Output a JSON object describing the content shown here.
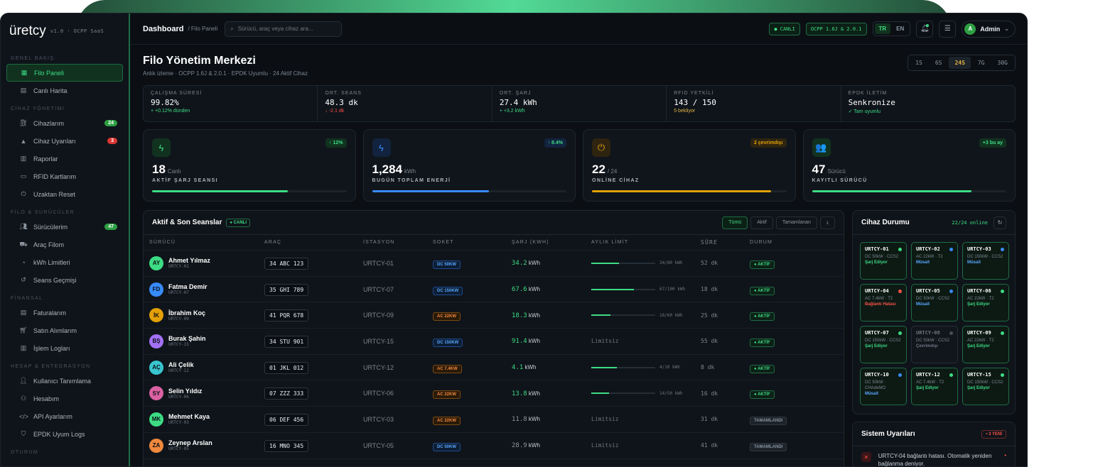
{
  "brand": {
    "name": "üretcy",
    "version": "v1.0 · OCPP SaaS"
  },
  "sidebar": {
    "groups": [
      {
        "title": "GENEL BAKIŞ",
        "items": [
          {
            "label": "Filo Paneli",
            "icon": "dashboard-icon",
            "active": true
          },
          {
            "label": "Canlı Harita",
            "icon": "map-icon"
          }
        ]
      },
      {
        "title": "CİHAZ YÖNETİMİ",
        "items": [
          {
            "label": "Cihazlarım",
            "icon": "charger-icon",
            "badge": "24",
            "badge_color": "#2ea043"
          },
          {
            "label": "Cihaz Uyarıları",
            "icon": "warning-icon",
            "badge": "3",
            "badge_color": "#da3633"
          },
          {
            "label": "Raporlar",
            "icon": "report-icon"
          },
          {
            "label": "RFID Kartlarım",
            "icon": "card-icon"
          },
          {
            "label": "Uzaktan Reset",
            "icon": "power-icon"
          }
        ]
      },
      {
        "title": "FİLO & SÜRÜCÜLER",
        "items": [
          {
            "label": "Sürücülerim",
            "icon": "users-icon",
            "badge": "47",
            "badge_color": "#2ea043"
          },
          {
            "label": "Araç Filom",
            "icon": "car-icon"
          },
          {
            "label": "kWh Limitleri",
            "icon": "gauge-icon"
          },
          {
            "label": "Seans Geçmişi",
            "icon": "history-icon"
          }
        ]
      },
      {
        "title": "FİNANSAL",
        "items": [
          {
            "label": "Faturalarım",
            "icon": "invoice-icon"
          },
          {
            "label": "Satın Alımlarım",
            "icon": "cart-icon"
          },
          {
            "label": "İşlem Logları",
            "icon": "log-icon"
          }
        ]
      },
      {
        "title": "HESAP & ENTEGRASYON",
        "items": [
          {
            "label": "Kullanıcı Tanımlama",
            "icon": "user-add-icon"
          },
          {
            "label": "Hesabım",
            "icon": "account-icon"
          },
          {
            "label": "API Ayarlarım",
            "icon": "code-icon"
          },
          {
            "label": "EPDK Uyum Logs",
            "icon": "shield-icon"
          }
        ]
      },
      {
        "title": "OTURUM",
        "items": []
      }
    ]
  },
  "header": {
    "title": "Dashboard",
    "crumb": "/ Filo Paneli",
    "search_placeholder": "Sürücü, araç veya cihaz ara...",
    "live": "● CANLI",
    "protocol": "OCPP 1.6J & 2.0.1",
    "langs": [
      "TR",
      "EN"
    ],
    "user": "Admin",
    "avatar": "A"
  },
  "page": {
    "title": "Filo Yönetim Merkezi",
    "subtitle": "Anlık izleme · OCPP 1.6J & 2.0.1 · EPDK Uyumlu · 24 Aktif Cihaz",
    "ranges": [
      "1S",
      "6S",
      "24S",
      "7G",
      "30G"
    ],
    "active_range": "24S"
  },
  "kpis": [
    {
      "label": "ÇALIŞMA SÜRESİ",
      "value": "99.82%",
      "sub": "+ +0.12% dünden",
      "color": "#3ddc84"
    },
    {
      "label": "ORT. SEANS",
      "value": "48.3 dk",
      "sub": "↓ -2.1 dk",
      "color": "#f85149"
    },
    {
      "label": "ORT. ŞARJ",
      "value": "27.4 kWh",
      "sub": "+ +3.2 kWh",
      "color": "#3ddc84"
    },
    {
      "label": "RFID YETKİLİ",
      "value": "143 / 150",
      "sub": "5 bekliyor",
      "color": "#e3b341"
    },
    {
      "label": "EPDK İLETİM",
      "value": "Senkronize",
      "sub": "✓ Tam uyumlu",
      "color": "#3ddc84"
    }
  ],
  "cards": [
    {
      "icon": "bolt-icon",
      "glyph": "ϟ",
      "num": "18",
      "unit": "Canlı",
      "label": "AKTİF ŞARJ SEANSI",
      "badge": "↑ 12%",
      "color": "#3ddc84",
      "bg": "#11321f",
      "fill": 0.7
    },
    {
      "icon": "energy-icon",
      "glyph": "ϟ",
      "num": "1,284",
      "unit": "kWh",
      "label": "BUGÜN TOPLAM ENERJİ",
      "badge": "↑ 8.4%",
      "color": "#388bfd",
      "bg": "#12233f",
      "fill": 0.6,
      "badge_color": "#3ddc84"
    },
    {
      "icon": "plug-icon",
      "glyph": "⏻",
      "num": "22",
      "unit": "/ 24",
      "label": "ONLİNE CİHAZ",
      "badge": "2 çevrimdışı",
      "color": "#e3a008",
      "bg": "#2e2410",
      "fill": 0.92
    },
    {
      "icon": "drivers-icon",
      "glyph": "👥",
      "num": "47",
      "unit": "Sürücü",
      "label": "KAYITLI SÜRÜCÜ",
      "badge": "+3 bu ay",
      "color": "#3ddc84",
      "bg": "#11321f",
      "fill": 0.82
    }
  ],
  "sessions": {
    "title": "Aktif & Son Seanslar",
    "live": "● CANLI",
    "filters": [
      "Tümü",
      "Aktif",
      "Tamamlanan"
    ],
    "columns": [
      "SÜRÜCÜ",
      "ARAÇ",
      "İSTASYON",
      "SOKET",
      "ŞARJ (KWH)",
      "AYLIK LİMİT",
      "SÜRE",
      "DURUM"
    ],
    "rows": [
      {
        "initials": "AY",
        "name": "Ahmet Yılmaz",
        "id": "URTCY-01",
        "color": "#3ddc84",
        "plate": "34 ABC 123",
        "station": "URTCY-01",
        "socket": "DC 50KW",
        "sock": "dc",
        "kwh": "34.2",
        "limit": "34/80 kWh",
        "fill": 0.43,
        "duration": "52 dk",
        "status": "● AKTİF"
      },
      {
        "initials": "FD",
        "name": "Fatma Demir",
        "id": "URTCY-07",
        "color": "#388bfd",
        "plate": "35 GHI 789",
        "station": "URTCY-07",
        "socket": "DC 150KW",
        "sock": "dc",
        "kwh": "67.6",
        "limit": "67/100 kWh",
        "fill": 0.67,
        "duration": "18 dk",
        "status": "● AKTİF"
      },
      {
        "initials": "İK",
        "name": "İbrahim Koç",
        "id": "URTCY-09",
        "color": "#e3a008",
        "plate": "41 PQR 678",
        "station": "URTCY-09",
        "socket": "AC 22KW",
        "sock": "ac",
        "kwh": "18.3",
        "limit": "18/60 kWh",
        "fill": 0.3,
        "duration": "25 dk",
        "status": "● AKTİF"
      },
      {
        "initials": "BŞ",
        "name": "Burak Şahin",
        "id": "URTCY-15",
        "color": "#a371f7",
        "plate": "34 STU 901",
        "station": "URTCY-15",
        "socket": "DC 150KW",
        "sock": "dc",
        "kwh": "91.4",
        "limit": "Limitsiz",
        "fill": null,
        "duration": "55 dk",
        "status": "● AKTİF"
      },
      {
        "initials": "AÇ",
        "name": "Ali Çelik",
        "id": "URTCY-12",
        "color": "#39c5cf",
        "plate": "01 JKL 012",
        "station": "URTCY-12",
        "socket": "AC 7.4KW",
        "sock": "ac",
        "kwh": "4.1",
        "limit": "4/10 kWh",
        "fill": 0.4,
        "duration": "8 dk",
        "status": "● AKTİF"
      },
      {
        "initials": "SY",
        "name": "Selin Yıldız",
        "id": "URTCY-06",
        "color": "#db61a2",
        "plate": "07 ZZZ 333",
        "station": "URTCY-06",
        "socket": "AC 22KW",
        "sock": "ac",
        "kwh": "13.8",
        "limit": "14/50 kWh",
        "fill": 0.28,
        "duration": "16 dk",
        "status": "● AKTİF"
      },
      {
        "initials": "MK",
        "name": "Mehmet Kaya",
        "id": "URTCY-03",
        "color": "#3ddc84",
        "plate": "06 DEF 456",
        "station": "URTCY-03",
        "socket": "AC 22KW",
        "sock": "ac",
        "kwh": "11.8",
        "limit": "Limitsiz",
        "fill": null,
        "duration": "31 dk",
        "status": "TAMAMLANDI"
      },
      {
        "initials": "ZA",
        "name": "Zeynep Arslan",
        "id": "URTCY-05",
        "color": "#f0883e",
        "plate": "16 MNO 345",
        "station": "URTCY-05",
        "socket": "DC 50KW",
        "sock": "dc",
        "kwh": "28.9",
        "limit": "Limitsiz",
        "fill": null,
        "duration": "41 dk",
        "status": "TAMAMLANDI"
      }
    ]
  },
  "devices": {
    "title": "Cihaz Durumu",
    "count": "22/24 online",
    "items": [
      {
        "id": "URTCY-01",
        "spec": "DC 50kW · CCS2",
        "state": "Şarj Ediyor",
        "dot": "#3ddc84",
        "tc": "#3ddc84"
      },
      {
        "id": "URTCY-02",
        "spec": "AC 22kW · T2",
        "state": "Müsait",
        "dot": "#388bfd",
        "tc": "#58a6ff"
      },
      {
        "id": "URTCY-03",
        "spec": "DC 150kW · CCS2",
        "state": "Müsait",
        "dot": "#388bfd",
        "tc": "#58a6ff"
      },
      {
        "id": "URTCY-04",
        "spec": "AC 7.4kW · T2",
        "state": "Bağlantı Hatası",
        "dot": "#f85149",
        "tc": "#f85149"
      },
      {
        "id": "URTCY-05",
        "spec": "DC 50kW · CCS2",
        "state": "Müsait",
        "dot": "#388bfd",
        "tc": "#58a6ff"
      },
      {
        "id": "URTCY-06",
        "spec": "AC 22kW · T2",
        "state": "Şarj Ediyor",
        "dot": "#3ddc84",
        "tc": "#3ddc84"
      },
      {
        "id": "URTCY-07",
        "spec": "DC 150kW · CCS2",
        "state": "Şarj Ediyor",
        "dot": "#3ddc84",
        "tc": "#3ddc84"
      },
      {
        "id": "URTCY-08",
        "spec": "DC 50kW · CCS2",
        "state": "Çevrimdışı",
        "dot": "#484f58",
        "tc": "#6e7681"
      },
      {
        "id": "URTCY-09",
        "spec": "AC 22kW · T2",
        "state": "Şarj Ediyor",
        "dot": "#3ddc84",
        "tc": "#3ddc84"
      },
      {
        "id": "URTCY-10",
        "spec": "DC 50kW · CHAdeMO",
        "state": "Müsait",
        "dot": "#388bfd",
        "tc": "#58a6ff"
      },
      {
        "id": "URTCY-12",
        "spec": "AC 7.4kW · T2",
        "state": "Şarj Ediyor",
        "dot": "#3ddc84",
        "tc": "#3ddc84"
      },
      {
        "id": "URTCY-15",
        "spec": "DC 150kW · CCS2",
        "state": "Şarj Ediyor",
        "dot": "#3ddc84",
        "tc": "#3ddc84"
      }
    ]
  },
  "alerts": {
    "title": "Sistem Uyarıları",
    "badge": "• 3 YENİ",
    "first": "URTCY-04 bağlantı hatası. Otomatik yeniden bağlanma deniyor."
  }
}
